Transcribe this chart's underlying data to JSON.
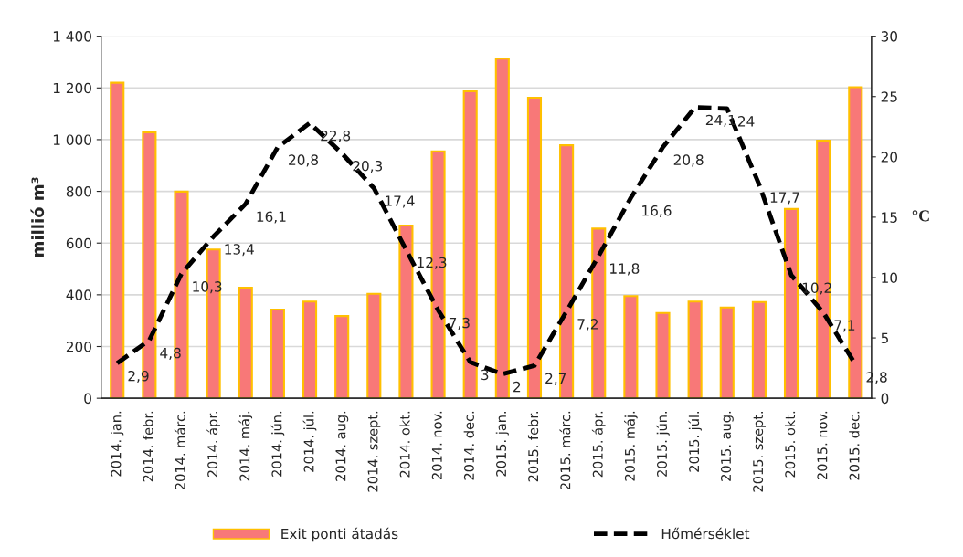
{
  "chart_data": {
    "type": "bar",
    "categories": [
      "2014. jan.",
      "2014. febr.",
      "2014. márc.",
      "2014. ápr.",
      "2014. máj.",
      "2014. jún.",
      "2014. júl.",
      "2014. aug.",
      "2014. szept.",
      "2014. okt.",
      "2014. nov.",
      "2014. dec.",
      "2015. jan.",
      "2015. febr.",
      "2015. márc.",
      "2015. ápr.",
      "2015. máj.",
      "2015. jún.",
      "2015. júl.",
      "2015. aug.",
      "2015. szept.",
      "2015. okt.",
      "2015. nov.",
      "2015. dec."
    ],
    "series": [
      {
        "name": "Exit ponti átadás",
        "color": "#f87878",
        "values": [
          1220,
          1028,
          799,
          575,
          428,
          343,
          374,
          318,
          404,
          668,
          955,
          1187,
          1313,
          1162,
          978,
          656,
          395,
          330,
          374,
          351,
          372,
          732,
          996,
          1203
        ]
      },
      {
        "name": "Hőmérséklet",
        "type": "line",
        "axis": "y2",
        "color": "#000000",
        "line_style": "dashed",
        "values": [
          2.9,
          4.8,
          10.3,
          13.4,
          16.1,
          20.8,
          22.8,
          20.3,
          17.4,
          12.3,
          7.3,
          3,
          2,
          2.7,
          7.2,
          11.8,
          16.6,
          20.8,
          24.1,
          24,
          17.7,
          10.2,
          7.1,
          2.8
        ],
        "value_labels": [
          "2,9",
          "4,8",
          "10,3",
          "13,4",
          "16,1",
          "20,8",
          "22,8",
          "20,3",
          "17,4",
          "12,3",
          "7,3",
          "3",
          "2",
          "2,7",
          "7,2",
          "11,8",
          "16,6",
          "20,8",
          "24,1",
          "24",
          "17,7",
          "10,2",
          "7,1",
          "2,8"
        ]
      }
    ],
    "ylabel": "millió m³",
    "y2label": "°C",
    "ylim": [
      0,
      1400
    ],
    "yticks": [
      0,
      200,
      400,
      600,
      800,
      {
        "value": 1000,
        "label": "1 000"
      },
      {
        "value": 1200,
        "label": "1 200"
      },
      {
        "value": 1400,
        "label": "1 400"
      }
    ],
    "y2lim": [
      0,
      30
    ],
    "y2ticks": [
      0,
      5,
      10,
      15,
      20,
      25,
      30
    ],
    "grid": "y",
    "legend": "bottom"
  }
}
